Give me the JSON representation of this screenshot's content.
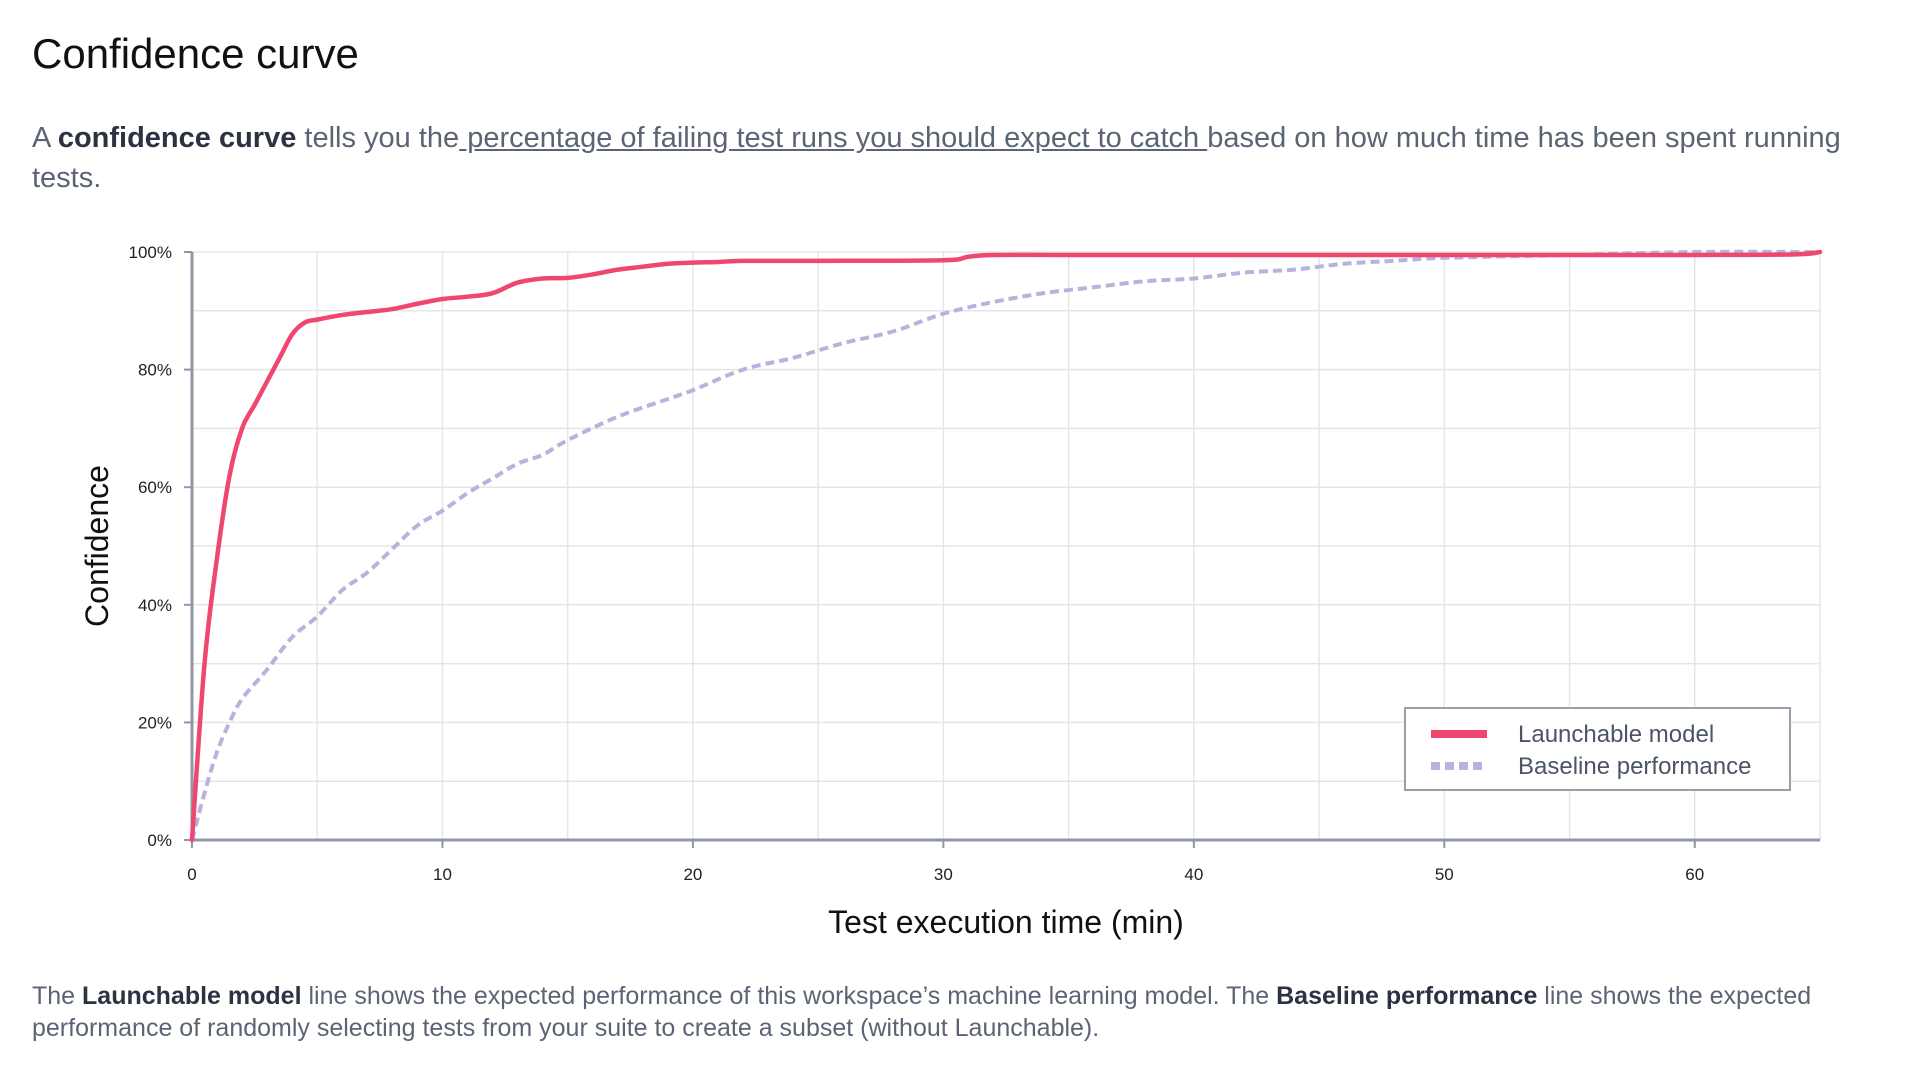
{
  "header": {
    "title": "Confidence curve"
  },
  "intro": {
    "p1": "A ",
    "bold": "confidence curve",
    "p2": " tells you the",
    "link": " percentage of failing test runs you should expect to catch ",
    "p3": "based on how much time has been spent running tests."
  },
  "footer": {
    "p1": "The ",
    "b1": "Launchable model",
    "p2": " line shows the expected performance of this workspace’s machine learning model. The ",
    "b2": "Baseline performance",
    "p3": " line shows the expected performance of randomly selecting tests from your suite to create a subset (without Launchable)."
  },
  "colors": {
    "launchable": "#ef476f",
    "baseline": "#b8b3dc",
    "grid": "#e5e5e5",
    "axis": "#8f97a6"
  },
  "chart_data": {
    "type": "line",
    "xlabel": "Test execution time (min)",
    "ylabel": "Confidence",
    "xlim": [
      0,
      65
    ],
    "ylim": [
      0,
      100
    ],
    "x_ticks": [
      0,
      10,
      20,
      30,
      40,
      50,
      60
    ],
    "y_ticks": [
      0,
      20,
      40,
      60,
      80,
      100
    ],
    "y_tick_labels": [
      "0%",
      "20%",
      "40%",
      "60%",
      "80%",
      "100%"
    ],
    "grid": true,
    "legend_position": "bottom-right",
    "series": [
      {
        "name": "Launchable model",
        "style": "solid",
        "x": [
          0,
          0.5,
          1,
          1.5,
          2,
          2.5,
          3,
          3.5,
          4,
          4.5,
          5,
          6,
          7,
          8,
          9,
          10,
          11,
          12,
          13,
          14,
          15,
          16,
          17,
          18,
          19,
          20,
          21,
          22,
          25,
          30,
          31,
          32,
          35,
          40,
          45,
          50,
          55,
          60,
          64,
          65
        ],
        "y": [
          0,
          30,
          48,
          62,
          70,
          74,
          78,
          82,
          86,
          88,
          88.5,
          89.3,
          89.8,
          90.3,
          91.2,
          92,
          92.4,
          93,
          94.8,
          95.5,
          95.6,
          96.2,
          97,
          97.5,
          98,
          98.2,
          98.3,
          98.5,
          98.5,
          98.6,
          99.2,
          99.5,
          99.5,
          99.5,
          99.5,
          99.5,
          99.5,
          99.5,
          99.6,
          100
        ]
      },
      {
        "name": "Baseline performance",
        "style": "dashed",
        "x": [
          0,
          0.5,
          1,
          1.5,
          2,
          3,
          4,
          5,
          6,
          7,
          8,
          9,
          10,
          11,
          12,
          13,
          14,
          15,
          17,
          19,
          20,
          22,
          24,
          26,
          28,
          30,
          32,
          34,
          36,
          38,
          40,
          42,
          44,
          46,
          48,
          50,
          55,
          60,
          65
        ],
        "y": [
          0,
          8,
          15,
          20,
          24,
          29,
          34.5,
          38,
          42.5,
          45.5,
          49.5,
          53.5,
          56,
          59,
          61.5,
          64,
          65.5,
          68,
          72,
          75,
          76.5,
          80,
          82,
          84.5,
          86.5,
          89.5,
          91.5,
          93,
          94,
          95,
          95.5,
          96.5,
          97,
          98,
          98.5,
          99,
          99.5,
          100,
          100
        ]
      }
    ]
  }
}
